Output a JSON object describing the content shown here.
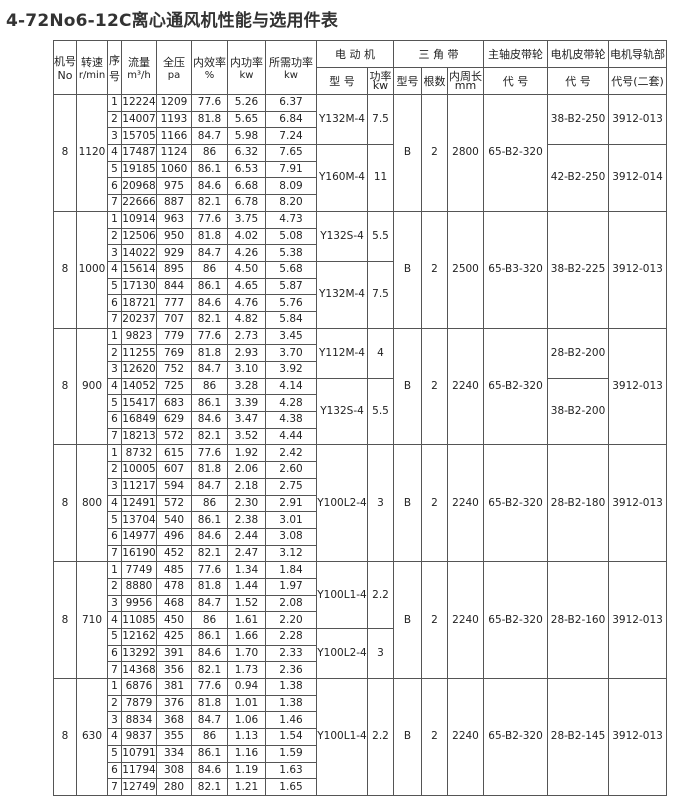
{
  "title": "4-72No6-12C离心通风机性能与选用件表",
  "header": {
    "top": [
      "机号",
      "转速",
      "序",
      "流量",
      "全压",
      "内效率",
      "内功率",
      "所需功率",
      "电 动 机",
      "三 角 带",
      "主轴皮带轮",
      "电机皮带轮",
      "电机导轨部"
    ],
    "sub": [
      "No",
      "r/min",
      "号",
      "m³/h",
      "pa",
      "%",
      "kw",
      "kw",
      "型 号",
      "功率kw",
      "型号",
      "根数",
      "内周长mm",
      "代 号",
      "代 号",
      "代号(二套)"
    ]
  },
  "groups": [
    {
      "no": "8",
      "rpm": "1120",
      "rows": [
        [
          "1",
          "12224",
          "1209",
          "77.6",
          "5.26",
          "6.37"
        ],
        [
          "2",
          "14007",
          "1193",
          "81.8",
          "5.65",
          "6.84"
        ],
        [
          "3",
          "15705",
          "1166",
          "84.7",
          "5.98",
          "7.24"
        ],
        [
          "4",
          "17487",
          "1124",
          "86",
          "6.32",
          "7.65"
        ],
        [
          "5",
          "19185",
          "1060",
          "86.1",
          "6.53",
          "7.91"
        ],
        [
          "6",
          "20968",
          "975",
          "84.6",
          "6.68",
          "8.09"
        ],
        [
          "7",
          "22666",
          "887",
          "82.1",
          "6.78",
          "8.20"
        ]
      ],
      "motors": [
        {
          "model": "Y132M-4",
          "power": "7.5",
          "span": 3
        },
        {
          "model": "Y160M-4",
          "power": "11",
          "span": 4
        }
      ],
      "belt_type": "B",
      "belt_count": "2",
      "belt_length": "2800",
      "shaft_pulley": "65-B2-320",
      "motor_pulleys": [
        {
          "code": "38-B2-250",
          "span": 3
        },
        {
          "code": "42-B2-250",
          "span": 4
        }
      ],
      "rails": [
        {
          "code": "3912-013",
          "span": 3
        },
        {
          "code": "3912-014",
          "span": 4
        }
      ]
    },
    {
      "no": "8",
      "rpm": "1000",
      "rows": [
        [
          "1",
          "10914",
          "963",
          "77.6",
          "3.75",
          "4.73"
        ],
        [
          "2",
          "12506",
          "950",
          "81.8",
          "4.02",
          "5.08"
        ],
        [
          "3",
          "14022",
          "929",
          "84.7",
          "4.26",
          "5.38"
        ],
        [
          "4",
          "15614",
          "895",
          "86",
          "4.50",
          "5.68"
        ],
        [
          "5",
          "17130",
          "844",
          "86.1",
          "4.65",
          "5.87"
        ],
        [
          "6",
          "18721",
          "777",
          "84.6",
          "4.76",
          "5.76"
        ],
        [
          "7",
          "20237",
          "707",
          "82.1",
          "4.82",
          "5.84"
        ]
      ],
      "motors": [
        {
          "model": "Y132S-4",
          "power": "5.5",
          "span": 3
        },
        {
          "model": "Y132M-4",
          "power": "7.5",
          "span": 4
        }
      ],
      "belt_type": "B",
      "belt_count": "2",
      "belt_length": "2500",
      "shaft_pulley": "65-B3-320",
      "motor_pulleys": [
        {
          "code": "38-B2-225",
          "span": 7
        }
      ],
      "rails": [
        {
          "code": "3912-013",
          "span": 7
        }
      ]
    },
    {
      "no": "8",
      "rpm": "900",
      "rows": [
        [
          "1",
          "9823",
          "779",
          "77.6",
          "2.73",
          "3.45"
        ],
        [
          "2",
          "11255",
          "769",
          "81.8",
          "2.93",
          "3.70"
        ],
        [
          "3",
          "12620",
          "752",
          "84.7",
          "3.10",
          "3.92"
        ],
        [
          "4",
          "14052",
          "725",
          "86",
          "3.28",
          "4.14"
        ],
        [
          "5",
          "15417",
          "683",
          "86.1",
          "3.39",
          "4.28"
        ],
        [
          "6",
          "16849",
          "629",
          "84.6",
          "3.47",
          "4.38"
        ],
        [
          "7",
          "18213",
          "572",
          "82.1",
          "3.52",
          "4.44"
        ]
      ],
      "motors": [
        {
          "model": "Y112M-4",
          "power": "4",
          "span": 3
        },
        {
          "model": "Y132S-4",
          "power": "5.5",
          "span": 4
        }
      ],
      "belt_type": "B",
      "belt_count": "2",
      "belt_length": "2240",
      "shaft_pulley": "65-B2-320",
      "motor_pulleys": [
        {
          "code": "28-B2-200",
          "span": 3
        },
        {
          "code": "38-B2-200",
          "span": 4
        }
      ],
      "rails": [
        {
          "code": "3912-013",
          "span": 7
        }
      ]
    },
    {
      "no": "8",
      "rpm": "800",
      "rows": [
        [
          "1",
          "8732",
          "615",
          "77.6",
          "1.92",
          "2.42"
        ],
        [
          "2",
          "10005",
          "607",
          "81.8",
          "2.06",
          "2.60"
        ],
        [
          "3",
          "11217",
          "594",
          "84.7",
          "2.18",
          "2.75"
        ],
        [
          "4",
          "12491",
          "572",
          "86",
          "2.30",
          "2.91"
        ],
        [
          "5",
          "13704",
          "540",
          "86.1",
          "2.38",
          "3.01"
        ],
        [
          "6",
          "14977",
          "496",
          "84.6",
          "2.44",
          "3.08"
        ],
        [
          "7",
          "16190",
          "452",
          "82.1",
          "2.47",
          "3.12"
        ]
      ],
      "motors": [
        {
          "model": "Y100L2-4",
          "power": "3",
          "span": 7
        }
      ],
      "belt_type": "B",
      "belt_count": "2",
      "belt_length": "2240",
      "shaft_pulley": "65-B2-320",
      "motor_pulleys": [
        {
          "code": "28-B2-180",
          "span": 7
        }
      ],
      "rails": [
        {
          "code": "3912-013",
          "span": 7
        }
      ]
    },
    {
      "no": "8",
      "rpm": "710",
      "rows": [
        [
          "1",
          "7749",
          "485",
          "77.6",
          "1.34",
          "1.84"
        ],
        [
          "2",
          "8880",
          "478",
          "81.8",
          "1.44",
          "1.97"
        ],
        [
          "3",
          "9956",
          "468",
          "84.7",
          "1.52",
          "2.08"
        ],
        [
          "4",
          "11085",
          "450",
          "86",
          "1.61",
          "2.20"
        ],
        [
          "5",
          "12162",
          "425",
          "86.1",
          "1.66",
          "2.28"
        ],
        [
          "6",
          "13292",
          "391",
          "84.6",
          "1.70",
          "2.33"
        ],
        [
          "7",
          "14368",
          "356",
          "82.1",
          "1.73",
          "2.36"
        ]
      ],
      "motors": [
        {
          "model": "Y100L1-4",
          "power": "2.2",
          "span": 4
        },
        {
          "model": "Y100L2-4",
          "power": "3",
          "span": 3
        }
      ],
      "belt_type": "B",
      "belt_count": "2",
      "belt_length": "2240",
      "shaft_pulley": "65-B2-320",
      "motor_pulleys": [
        {
          "code": "28-B2-160",
          "span": 7
        }
      ],
      "rails": [
        {
          "code": "3912-013",
          "span": 7
        }
      ]
    },
    {
      "no": "8",
      "rpm": "630",
      "rows": [
        [
          "1",
          "6876",
          "381",
          "77.6",
          "0.94",
          "1.38"
        ],
        [
          "2",
          "7879",
          "376",
          "81.8",
          "1.01",
          "1.38"
        ],
        [
          "3",
          "8834",
          "368",
          "84.7",
          "1.06",
          "1.46"
        ],
        [
          "4",
          "9837",
          "355",
          "86",
          "1.13",
          "1.54"
        ],
        [
          "5",
          "10791",
          "334",
          "86.1",
          "1.16",
          "1.59"
        ],
        [
          "6",
          "11794",
          "308",
          "84.6",
          "1.19",
          "1.63"
        ],
        [
          "7",
          "12749",
          "280",
          "82.1",
          "1.21",
          "1.65"
        ]
      ],
      "motors": [
        {
          "model": "Y100L1-4",
          "power": "2.2",
          "span": 7
        }
      ],
      "belt_type": "B",
      "belt_count": "2",
      "belt_length": "2240",
      "shaft_pulley": "65-B2-320",
      "motor_pulleys": [
        {
          "code": "28-B2-145",
          "span": 7
        }
      ],
      "rails": [
        {
          "code": "3912-013",
          "span": 7
        }
      ]
    }
  ]
}
